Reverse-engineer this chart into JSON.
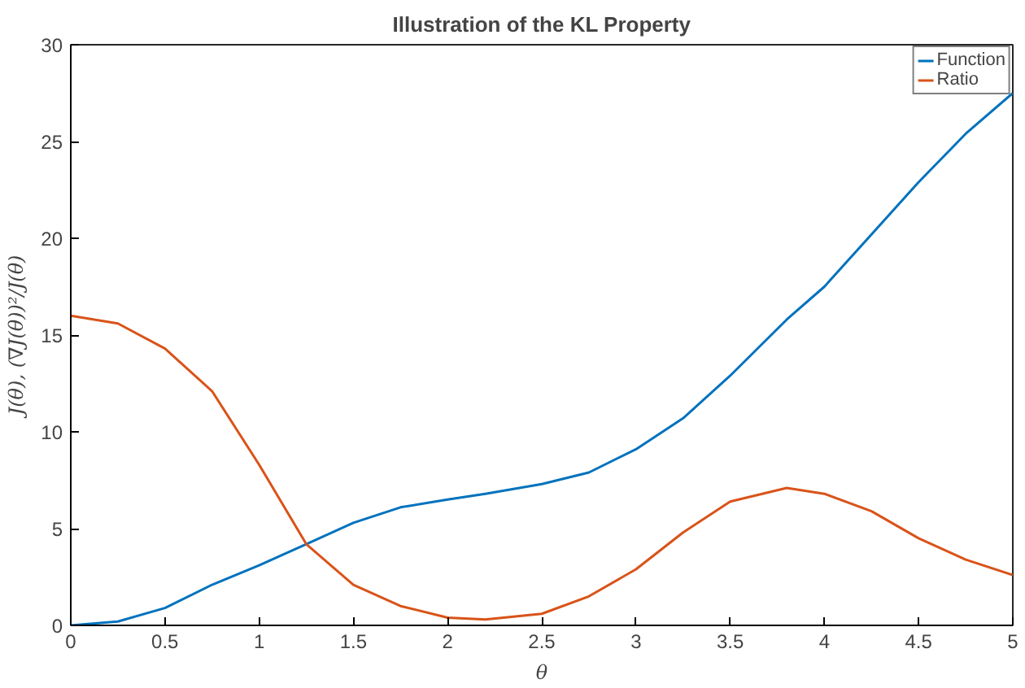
{
  "chart_data": {
    "type": "line",
    "title": "Illustration of the KL Property",
    "xlabel": "θ",
    "ylabel": "J(θ), (∇J(θ))²/J(θ)",
    "x": [
      0,
      0.25,
      0.5,
      0.75,
      1,
      1.25,
      1.5,
      1.75,
      2,
      2.2,
      2.5,
      2.75,
      3,
      3.25,
      3.5,
      3.8,
      4,
      4.25,
      4.5,
      4.75,
      5
    ],
    "series": [
      {
        "name": "Function",
        "color": "#0072bd",
        "values": [
          0,
          0.2,
          0.9,
          2.1,
          3.1,
          4.2,
          5.3,
          6.1,
          6.5,
          6.8,
          7.3,
          7.9,
          9.1,
          10.7,
          12.9,
          15.8,
          17.5,
          20.2,
          22.9,
          25.4,
          27.5
        ]
      },
      {
        "name": "Ratio",
        "color": "#d95319",
        "values": [
          16,
          15.6,
          14.3,
          12.1,
          8.3,
          4.2,
          2.1,
          1,
          0.4,
          0.3,
          0.6,
          1.5,
          2.9,
          4.8,
          6.4,
          7.1,
          6.8,
          5.9,
          4.5,
          3.4,
          2.6
        ]
      }
    ],
    "xlim": [
      0,
      5
    ],
    "ylim": [
      0,
      30
    ],
    "xticks": [
      0,
      0.5,
      1,
      1.5,
      2,
      2.5,
      3,
      3.5,
      4,
      4.5,
      5
    ],
    "yticks": [
      0,
      5,
      10,
      15,
      20,
      25,
      30
    ],
    "legend": "top right",
    "marker": "none",
    "line_style": "solid"
  }
}
